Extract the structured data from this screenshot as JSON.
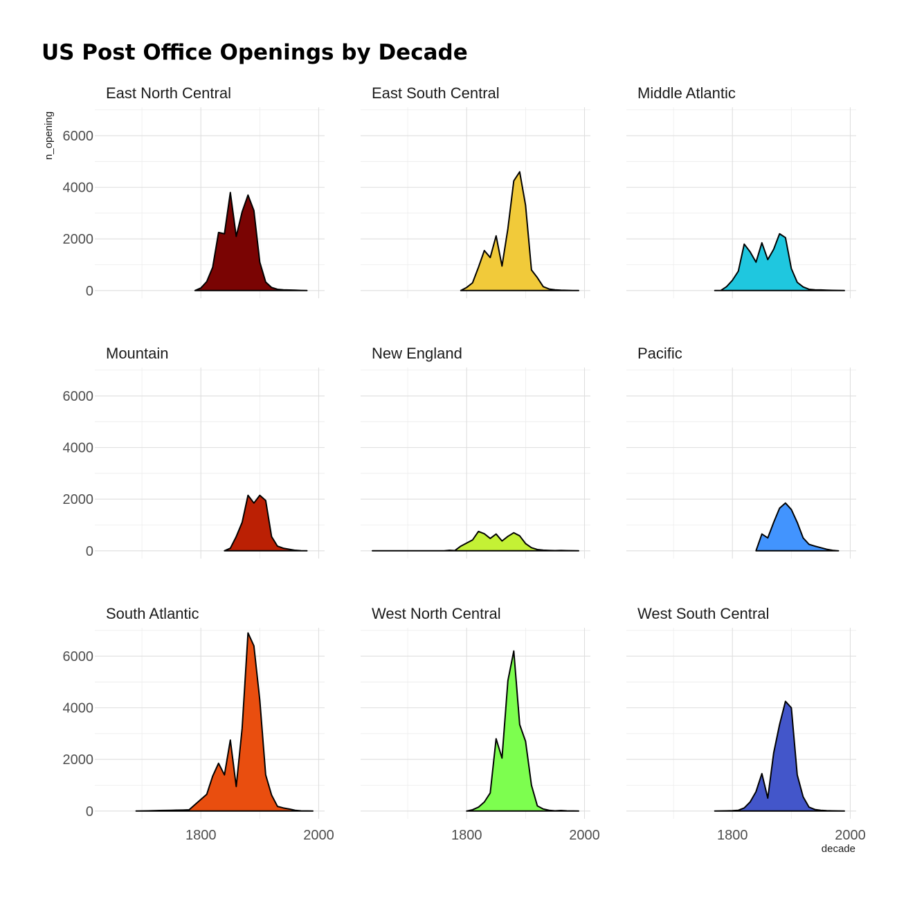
{
  "chart_data": {
    "type": "area",
    "title": "US Post Office Openings by Decade",
    "xlabel": "decade",
    "ylabel": "n_opening",
    "xlim": [
      1620,
      2010
    ],
    "ylim": [
      -300,
      7100
    ],
    "x_ticks": [
      1800,
      2000
    ],
    "y_ticks": [
      0,
      2000,
      4000,
      6000
    ],
    "x_tick_labels": [
      "1800",
      "2000"
    ],
    "y_tick_labels": [
      "0",
      "2000",
      "4000",
      "6000"
    ],
    "grid": true,
    "legend": "none",
    "panels": [
      {
        "name": "East North Central",
        "color": "#7a0403",
        "x": [
          1790,
          1800,
          1810,
          1820,
          1830,
          1840,
          1850,
          1860,
          1870,
          1880,
          1890,
          1900,
          1910,
          1920,
          1930,
          1940,
          1950,
          1960,
          1970,
          1980
        ],
        "y": [
          0,
          100,
          350,
          900,
          2250,
          2200,
          3800,
          2100,
          3050,
          3700,
          3100,
          1100,
          330,
          120,
          50,
          30,
          20,
          15,
          5,
          0
        ]
      },
      {
        "name": "East South Central",
        "color": "#f1ca3a",
        "x": [
          1790,
          1800,
          1810,
          1820,
          1830,
          1840,
          1850,
          1860,
          1870,
          1880,
          1890,
          1900,
          1910,
          1920,
          1930,
          1940,
          1950,
          1960,
          1970,
          1980,
          1990
        ],
        "y": [
          0,
          120,
          300,
          900,
          1550,
          1280,
          2120,
          950,
          2400,
          4250,
          4600,
          3300,
          800,
          500,
          150,
          60,
          30,
          15,
          8,
          3,
          0
        ]
      },
      {
        "name": "Middle Atlantic",
        "color": "#1fc7df",
        "x": [
          1770,
          1780,
          1790,
          1800,
          1810,
          1820,
          1830,
          1840,
          1850,
          1860,
          1870,
          1880,
          1890,
          1900,
          1910,
          1920,
          1930,
          1940,
          1950,
          1960,
          1970,
          1980,
          1990
        ],
        "y": [
          0,
          0,
          150,
          400,
          750,
          1800,
          1500,
          1100,
          1850,
          1200,
          1600,
          2200,
          2050,
          850,
          320,
          140,
          50,
          30,
          25,
          15,
          10,
          5,
          0
        ]
      },
      {
        "name": "Mountain",
        "color": "#bb2004",
        "x": [
          1840,
          1850,
          1860,
          1870,
          1880,
          1890,
          1900,
          1910,
          1920,
          1930,
          1940,
          1950,
          1960,
          1970,
          1980
        ],
        "y": [
          0,
          100,
          550,
          1100,
          2150,
          1850,
          2150,
          1950,
          550,
          180,
          100,
          60,
          20,
          5,
          0
        ]
      },
      {
        "name": "New England",
        "color": "#c4f135",
        "x": [
          1640,
          1650,
          1660,
          1670,
          1680,
          1690,
          1700,
          1710,
          1720,
          1730,
          1740,
          1750,
          1760,
          1770,
          1780,
          1790,
          1800,
          1810,
          1820,
          1830,
          1840,
          1850,
          1860,
          1870,
          1880,
          1890,
          1900,
          1910,
          1920,
          1930,
          1940,
          1950,
          1960,
          1970,
          1980,
          1990
        ],
        "y": [
          0,
          0,
          0,
          0,
          0,
          0,
          0,
          0,
          0,
          0,
          0,
          0,
          0,
          20,
          10,
          180,
          300,
          420,
          750,
          660,
          480,
          650,
          380,
          560,
          700,
          580,
          280,
          120,
          50,
          25,
          15,
          10,
          15,
          10,
          5,
          0
        ]
      },
      {
        "name": "Pacific",
        "color": "#4294fe",
        "x": [
          1840,
          1850,
          1860,
          1870,
          1880,
          1890,
          1900,
          1910,
          1920,
          1930,
          1940,
          1950,
          1960,
          1970,
          1980
        ],
        "y": [
          0,
          650,
          500,
          1100,
          1650,
          1850,
          1600,
          1100,
          500,
          250,
          180,
          120,
          60,
          20,
          0
        ]
      },
      {
        "name": "South Atlantic",
        "color": "#e94e0f",
        "x": [
          1690,
          1700,
          1710,
          1720,
          1730,
          1740,
          1750,
          1760,
          1770,
          1780,
          1790,
          1800,
          1810,
          1820,
          1830,
          1840,
          1850,
          1860,
          1870,
          1880,
          1890,
          1900,
          1910,
          1920,
          1930,
          1940,
          1950,
          1960,
          1970,
          1980,
          1990
        ],
        "y": [
          0,
          5,
          10,
          15,
          20,
          25,
          30,
          35,
          40,
          50,
          250,
          450,
          650,
          1350,
          1850,
          1400,
          2750,
          950,
          3200,
          6900,
          6400,
          4300,
          1400,
          620,
          180,
          120,
          80,
          30,
          10,
          5,
          0
        ]
      },
      {
        "name": "West North Central",
        "color": "#7dfe4f",
        "x": [
          1800,
          1810,
          1820,
          1830,
          1840,
          1850,
          1860,
          1870,
          1880,
          1890,
          1900,
          1910,
          1920,
          1930,
          1940,
          1950,
          1960,
          1970,
          1980,
          1990
        ],
        "y": [
          0,
          50,
          150,
          350,
          700,
          2800,
          2050,
          5050,
          6200,
          3350,
          2700,
          1000,
          200,
          80,
          30,
          10,
          20,
          10,
          5,
          0
        ]
      },
      {
        "name": "West South Central",
        "color": "#4356ca",
        "x": [
          1770,
          1780,
          1790,
          1800,
          1810,
          1820,
          1830,
          1840,
          1850,
          1860,
          1870,
          1880,
          1890,
          1900,
          1910,
          1920,
          1930,
          1940,
          1950,
          1960,
          1970,
          1980,
          1990
        ],
        "y": [
          0,
          5,
          10,
          15,
          30,
          120,
          350,
          750,
          1450,
          500,
          2250,
          3350,
          4250,
          4000,
          1400,
          550,
          150,
          60,
          30,
          15,
          10,
          5,
          0
        ]
      }
    ]
  }
}
